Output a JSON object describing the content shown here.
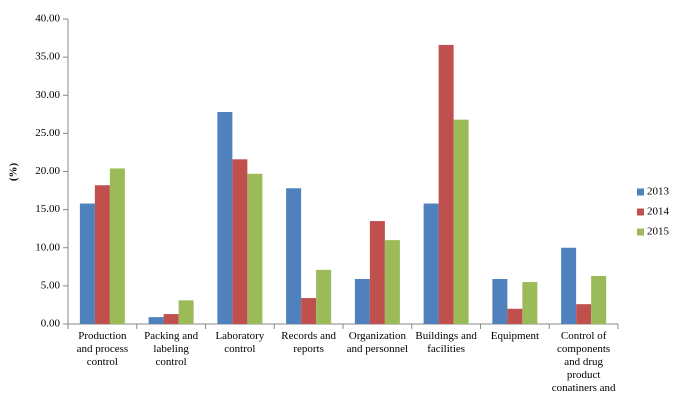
{
  "chart_data": {
    "type": "bar",
    "y_label": "(%)",
    "categories": [
      "Production and process control",
      "Packing and labeling control",
      "Laboratory control",
      "Records and reports",
      "Organization and personnel",
      "Buildings and facilities",
      "Equipment",
      "Control of components and drug product conatiners and"
    ],
    "series": [
      {
        "name": "2013",
        "color": "#4f81bd",
        "values": [
          15.8,
          0.9,
          27.8,
          17.8,
          5.9,
          15.8,
          5.9,
          10.0
        ]
      },
      {
        "name": "2014",
        "color": "#c0504d",
        "values": [
          18.2,
          1.3,
          21.6,
          3.4,
          13.5,
          36.6,
          2.0,
          2.6
        ]
      },
      {
        "name": "2015",
        "color": "#9bbb59",
        "values": [
          20.4,
          3.1,
          19.7,
          7.1,
          11.0,
          26.8,
          5.5,
          6.3
        ]
      }
    ],
    "ylim": [
      0,
      40
    ],
    "yticks": [
      {
        "value": 0,
        "label": "0.00"
      },
      {
        "value": 5,
        "label": "5.00"
      },
      {
        "value": 10,
        "label": "10.00"
      },
      {
        "value": 15,
        "label": "15.00"
      },
      {
        "value": 20,
        "label": "20.00"
      },
      {
        "value": 25,
        "label": "25.00"
      },
      {
        "value": 30,
        "label": "30.00"
      },
      {
        "value": 35,
        "label": "35.00"
      },
      {
        "value": 40,
        "label": "40.00"
      }
    ],
    "grid": false,
    "legend": "right"
  }
}
